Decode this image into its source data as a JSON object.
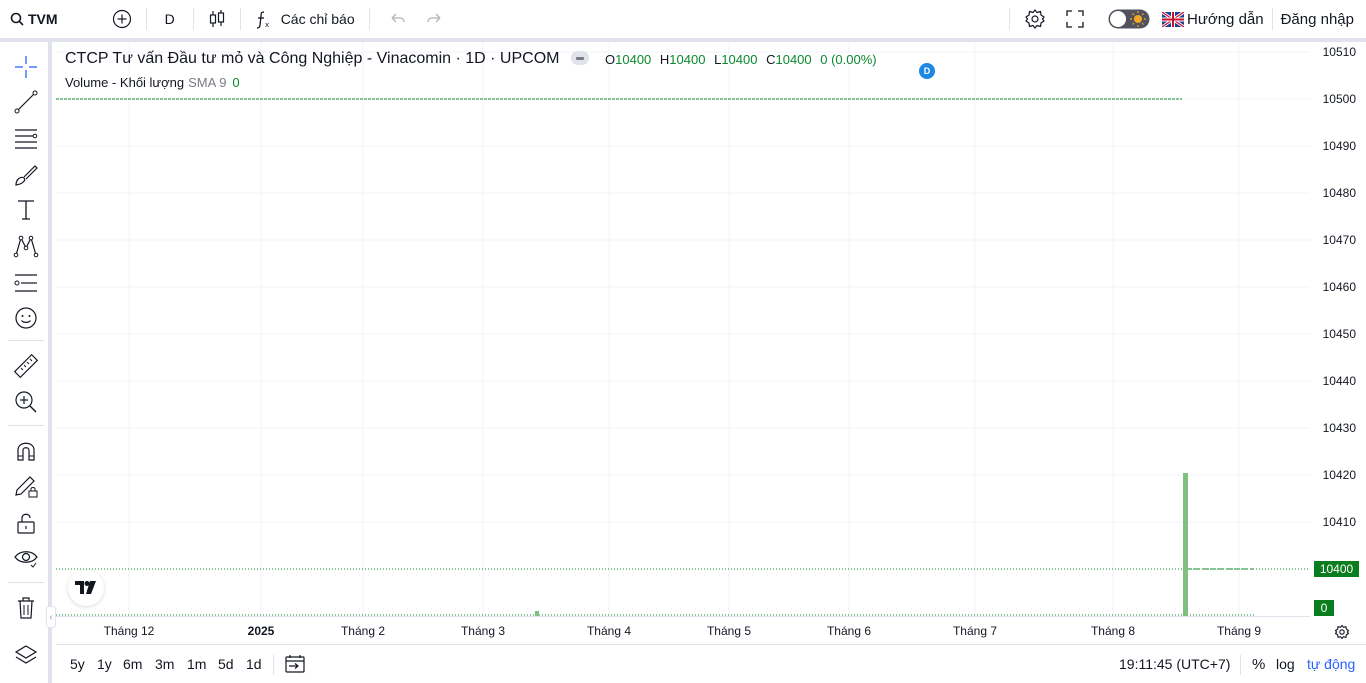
{
  "header": {
    "symbol": "TVM",
    "interval": "D",
    "indicators_label": "Các chỉ báo",
    "guide_label": "Hướng dẫn",
    "login_label": "Đăng nhập"
  },
  "legend": {
    "title": "CTCP Tư vấn Đầu tư mỏ và Công Nghiệp - Vinacomin · 1D · UPCOM",
    "ohlc": [
      {
        "key": "O",
        "value": "10400"
      },
      {
        "key": "H",
        "value": "10400"
      },
      {
        "key": "L",
        "value": "10400"
      },
      {
        "key": "C",
        "value": "10400"
      }
    ],
    "change": "0 (0.00%)",
    "volume_label": "Volume - Khối lượng",
    "sma_label": "SMA 9",
    "volume_value": "0",
    "dividend_marker": "D"
  },
  "price_scale": {
    "ticks": [
      "10510",
      "10500",
      "10490",
      "10480",
      "10470",
      "10460",
      "10450",
      "10440",
      "10430",
      "10420",
      "10410"
    ],
    "last_price_label": "10400",
    "volume_label": "0"
  },
  "time_axis": {
    "ticks": [
      "Tháng 12",
      "2025",
      "Tháng 2",
      "Tháng 3",
      "Tháng 4",
      "Tháng 5",
      "Tháng 6",
      "Tháng 7",
      "Tháng 8",
      "Tháng 9"
    ]
  },
  "bottom": {
    "ranges": [
      "5y",
      "1y",
      "6m",
      "3m",
      "1m",
      "5d",
      "1d"
    ],
    "time": "19:11:45 (UTC+7)",
    "percent": "%",
    "log": "log",
    "auto": "tự động"
  },
  "colors": {
    "accent": "#2962ff",
    "up": "#0a8a2e",
    "volume_bar": "#7fbf7f",
    "price_label_bg": "#0a7d1e"
  },
  "chart_data": {
    "type": "line",
    "title": "",
    "xlabel": "",
    "ylabel": "",
    "ylim": [
      10400,
      10510
    ],
    "x": [
      "Tháng 12",
      "2025",
      "Tháng 2",
      "Tháng 3",
      "Tháng 4",
      "Tháng 5",
      "Tháng 6",
      "Tháng 7",
      "Tháng 8",
      "Tháng 9"
    ],
    "series": [
      {
        "name": "",
        "values": [
          10500,
          10500,
          10500,
          10500,
          10500,
          10500,
          10500,
          10500,
          10500,
          10400
        ]
      }
    ],
    "volume": {
      "labeled_value": 0
    }
  }
}
